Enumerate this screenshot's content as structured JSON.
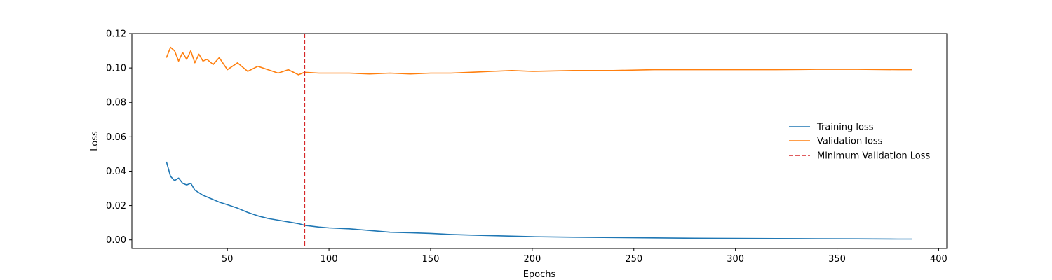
{
  "chart_data": {
    "type": "line",
    "xlabel": "Epochs",
    "ylabel": "Loss",
    "xlim": [
      3,
      404
    ],
    "ylim": [
      -0.005,
      0.12
    ],
    "x_ticks": [
      50,
      100,
      150,
      200,
      250,
      300,
      350,
      400
    ],
    "y_ticks": [
      0.0,
      0.02,
      0.04,
      0.06,
      0.08,
      0.1,
      0.12
    ],
    "y_tick_labels": [
      "0.00",
      "0.02",
      "0.04",
      "0.06",
      "0.08",
      "0.10",
      "0.12"
    ],
    "grid": false,
    "legend_placement": "center-right",
    "x": [
      20,
      22,
      24,
      26,
      28,
      30,
      32,
      34,
      36,
      38,
      40,
      43,
      46,
      50,
      55,
      60,
      65,
      70,
      75,
      80,
      85,
      88,
      95,
      100,
      110,
      120,
      130,
      140,
      150,
      160,
      170,
      180,
      190,
      200,
      220,
      240,
      260,
      280,
      300,
      320,
      340,
      360,
      380,
      387
    ],
    "series": [
      {
        "name": "Training loss",
        "color": "#1f77b4",
        "values": [
          0.0455,
          0.037,
          0.0345,
          0.036,
          0.033,
          0.032,
          0.033,
          0.029,
          0.0275,
          0.026,
          0.025,
          0.0235,
          0.022,
          0.0205,
          0.0185,
          0.016,
          0.014,
          0.0125,
          0.0115,
          0.0105,
          0.0095,
          0.0085,
          0.0075,
          0.007,
          0.0065,
          0.0055,
          0.0045,
          0.0042,
          0.0038,
          0.0032,
          0.0028,
          0.0025,
          0.0022,
          0.0019,
          0.0016,
          0.0014,
          0.0012,
          0.001,
          0.0009,
          0.0008,
          0.0007,
          0.0006,
          0.0005,
          0.0005
        ]
      },
      {
        "name": "Validation loss",
        "color": "#ff7f0e",
        "values": [
          0.106,
          0.112,
          0.11,
          0.104,
          0.109,
          0.105,
          0.11,
          0.103,
          0.108,
          0.104,
          0.105,
          0.102,
          0.106,
          0.099,
          0.103,
          0.098,
          0.101,
          0.099,
          0.097,
          0.099,
          0.096,
          0.0975,
          0.097,
          0.097,
          0.097,
          0.0965,
          0.097,
          0.0965,
          0.097,
          0.097,
          0.0975,
          0.098,
          0.0985,
          0.098,
          0.0985,
          0.0985,
          0.099,
          0.099,
          0.099,
          0.099,
          0.0992,
          0.0992,
          0.099,
          0.099
        ]
      }
    ],
    "reference_lines": [
      {
        "name": "Minimum Validation Loss",
        "x": 88,
        "color": "#d62728",
        "style": "dashed"
      }
    ]
  }
}
